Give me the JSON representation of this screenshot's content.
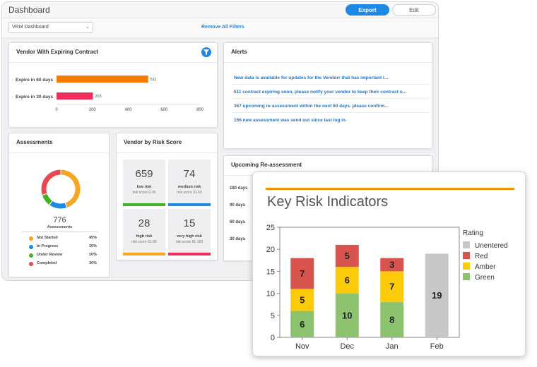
{
  "topbar": {
    "title": "Dashboard",
    "export_label": "Export",
    "edit_label": "Edit"
  },
  "filters": {
    "dashboard_select": "VRM Dashboard",
    "remove_all": "Remove All Filters"
  },
  "expiring": {
    "title": "Vendor With Expiring Contract",
    "rows": [
      {
        "label": "Expire in 60 days",
        "value": 511,
        "color": "#f57c00"
      },
      {
        "label": "Expire in 30 days",
        "value": 203,
        "color": "#ef2f5b"
      }
    ],
    "ticks": [
      "0",
      "200",
      "400",
      "600",
      "800"
    ],
    "xmax": 800
  },
  "alerts": {
    "title": "Alerts",
    "items": [
      "New data is available for updates for the Vendorr that has important i...",
      "511 contract expiring soon, please notify your vendor to keep their contract u...",
      "367 upcoming re-assessment within the next 60 days. please confirm...",
      "156 new assessment was send out since last log in."
    ]
  },
  "assessments": {
    "title": "Assessments",
    "total": "776",
    "total_label": "Assessments",
    "legend": [
      {
        "name": "Not Started",
        "pct": "45%",
        "value": 45,
        "color": "#f5a623"
      },
      {
        "name": "In Progress",
        "pct": "15%",
        "value": 15,
        "color": "#1e88e5"
      },
      {
        "name": "Under Review",
        "pct": "10%",
        "value": 10,
        "color": "#43b02a"
      },
      {
        "name": "Completed",
        "pct": "30%",
        "value": 30,
        "color": "#e8484f"
      }
    ]
  },
  "risk_score": {
    "title": "Vendor by Risk Score",
    "boxes": [
      {
        "num": "659",
        "label": "low risk",
        "sub": "risk score 0-30",
        "color": "#43b02a"
      },
      {
        "num": "74",
        "label": "medium risk",
        "sub": "risk score 31-60",
        "color": "#1e88e5"
      },
      {
        "num": "28",
        "label": "high risk",
        "sub": "risk score 61-80",
        "color": "#f5a623"
      },
      {
        "num": "15",
        "label": "very high risk",
        "sub": "risk score 81-100",
        "color": "#ef2f5b"
      }
    ]
  },
  "reassessment": {
    "title": "Upcoming Re-assessment",
    "rows": [
      "180 days",
      "90 days",
      "60 days",
      "30 days"
    ]
  },
  "chart_data": {
    "type": "bar",
    "stacked": true,
    "title": "Key Risk Indicators",
    "categories": [
      "Nov",
      "Dec",
      "Jan",
      "Feb"
    ],
    "legend_title": "Rating",
    "series": [
      {
        "name": "Green",
        "color": "#8dc26f",
        "values": [
          6,
          10,
          8,
          0
        ]
      },
      {
        "name": "Amber",
        "color": "#fbcb0a",
        "values": [
          5,
          6,
          7,
          0
        ]
      },
      {
        "name": "Red",
        "color": "#d9534f",
        "values": [
          7,
          5,
          3,
          0
        ]
      },
      {
        "name": "Unentered",
        "color": "#c8c8c8",
        "values": [
          0,
          0,
          0,
          19
        ]
      }
    ],
    "legend_order": [
      "Unentered",
      "Red",
      "Amber",
      "Green"
    ],
    "ylim": [
      0,
      25
    ],
    "yticks": [
      0,
      5,
      10,
      15,
      20,
      25
    ],
    "legend_position": "right",
    "grid": false
  }
}
